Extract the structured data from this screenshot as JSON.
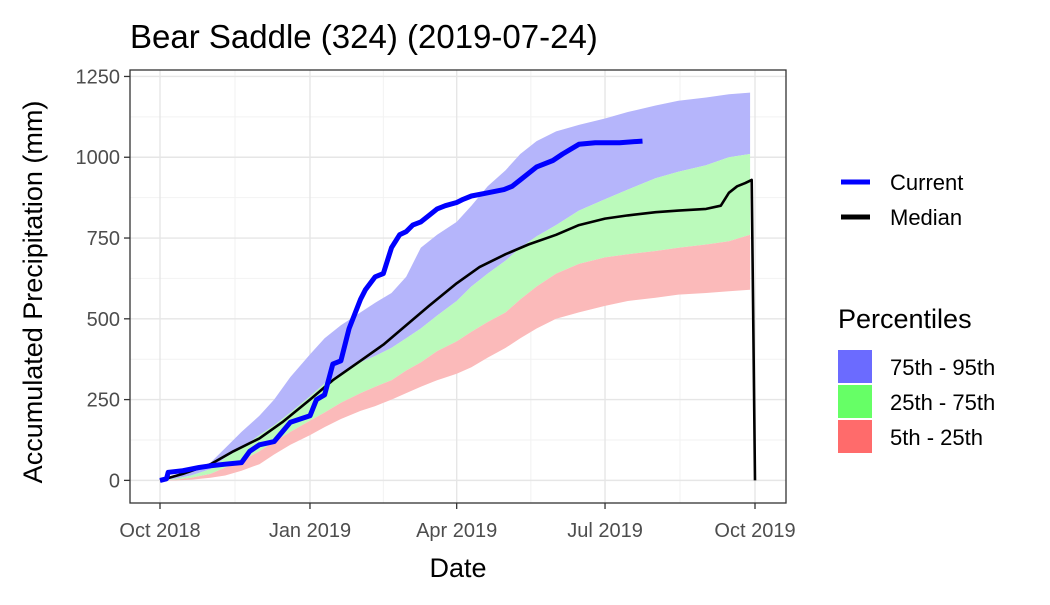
{
  "chart_data": {
    "type": "area",
    "title": "Bear Saddle (324) (2019-07-24)",
    "xlabel": "Date",
    "ylabel": "Accumulated Precipitation (mm)",
    "x_domain": [
      "2018-10-01",
      "2019-10-01"
    ],
    "ylim": [
      -70,
      1270
    ],
    "x_ticks": [
      {
        "date": "2018-10-01",
        "label": "Oct 2018"
      },
      {
        "date": "2019-01-01",
        "label": "Jan 2019"
      },
      {
        "date": "2019-04-01",
        "label": "Apr 2019"
      },
      {
        "date": "2019-07-01",
        "label": "Jul 2019"
      },
      {
        "date": "2019-10-01",
        "label": "Oct 2019"
      }
    ],
    "y_ticks": [
      0,
      250,
      500,
      750,
      1000,
      1250
    ],
    "grid": true,
    "legend": {
      "lines_title": "",
      "lines": [
        {
          "name": "Current",
          "color": "#0000ff"
        },
        {
          "name": "Median",
          "color": "#000000"
        }
      ],
      "bands_title": "Percentiles",
      "bands": [
        {
          "name": "75th - 95th",
          "color": "#6b6bff"
        },
        {
          "name": "25th - 75th",
          "color": "#66ff66"
        },
        {
          "name": "5th - 25th",
          "color": "#ff6b6b"
        }
      ]
    },
    "bands": [
      {
        "name": "75th - 95th",
        "color": "#b5b5fb",
        "dates": [
          "2018-10-01",
          "2018-10-10",
          "2018-10-20",
          "2018-11-01",
          "2018-11-10",
          "2018-11-20",
          "2018-12-01",
          "2018-12-10",
          "2018-12-20",
          "2019-01-01",
          "2019-01-10",
          "2019-01-20",
          "2019-02-01",
          "2019-02-10",
          "2019-02-20",
          "2019-03-01",
          "2019-03-10",
          "2019-03-20",
          "2019-04-01",
          "2019-04-10",
          "2019-04-20",
          "2019-05-01",
          "2019-05-10",
          "2019-05-20",
          "2019-06-01",
          "2019-06-15",
          "2019-07-01",
          "2019-07-15",
          "2019-08-01",
          "2019-08-15",
          "2019-09-01",
          "2019-09-15",
          "2019-09-28"
        ],
        "lower": [
          0,
          5,
          15,
          35,
          70,
          100,
          140,
          170,
          210,
          260,
          300,
          330,
          365,
          385,
          410,
          440,
          470,
          510,
          555,
          600,
          640,
          680,
          720,
          755,
          790,
          835,
          870,
          900,
          935,
          955,
          975,
          1000,
          1010
        ],
        "upper": [
          0,
          10,
          25,
          55,
          100,
          150,
          200,
          250,
          320,
          390,
          440,
          480,
          520,
          550,
          580,
          630,
          720,
          760,
          800,
          850,
          910,
          960,
          1010,
          1050,
          1080,
          1100,
          1120,
          1140,
          1160,
          1175,
          1185,
          1195,
          1200
        ]
      },
      {
        "name": "25th - 75th",
        "color": "#bbfabb",
        "dates": [
          "2018-10-01",
          "2018-10-10",
          "2018-10-20",
          "2018-11-01",
          "2018-11-10",
          "2018-11-20",
          "2018-12-01",
          "2018-12-10",
          "2018-12-20",
          "2019-01-01",
          "2019-01-10",
          "2019-01-20",
          "2019-02-01",
          "2019-02-10",
          "2019-02-20",
          "2019-03-01",
          "2019-03-10",
          "2019-03-20",
          "2019-04-01",
          "2019-04-10",
          "2019-04-20",
          "2019-05-01",
          "2019-05-10",
          "2019-05-20",
          "2019-06-01",
          "2019-06-15",
          "2019-07-01",
          "2019-07-15",
          "2019-08-01",
          "2019-08-15",
          "2019-09-01",
          "2019-09-15",
          "2019-09-28"
        ],
        "lower": [
          0,
          2,
          8,
          20,
          40,
          60,
          90,
          120,
          150,
          185,
          210,
          240,
          270,
          290,
          310,
          340,
          365,
          400,
          430,
          460,
          490,
          520,
          560,
          600,
          640,
          670,
          690,
          700,
          710,
          720,
          730,
          740,
          760
        ],
        "upper": [
          0,
          5,
          15,
          35,
          70,
          100,
          140,
          170,
          210,
          260,
          300,
          330,
          365,
          385,
          410,
          440,
          470,
          510,
          555,
          600,
          640,
          680,
          720,
          755,
          790,
          835,
          870,
          900,
          935,
          955,
          975,
          1000,
          1010
        ]
      },
      {
        "name": "5th - 25th",
        "color": "#fbbaba",
        "dates": [
          "2018-10-01",
          "2018-10-10",
          "2018-10-20",
          "2018-11-01",
          "2018-11-10",
          "2018-11-20",
          "2018-12-01",
          "2018-12-10",
          "2018-12-20",
          "2019-01-01",
          "2019-01-10",
          "2019-01-20",
          "2019-02-01",
          "2019-02-10",
          "2019-02-20",
          "2019-03-01",
          "2019-03-10",
          "2019-03-20",
          "2019-04-01",
          "2019-04-10",
          "2019-04-20",
          "2019-05-01",
          "2019-05-10",
          "2019-05-20",
          "2019-06-01",
          "2019-06-15",
          "2019-07-01",
          "2019-07-15",
          "2019-08-01",
          "2019-08-15",
          "2019-09-01",
          "2019-09-15",
          "2019-09-28"
        ],
        "lower": [
          0,
          0,
          2,
          8,
          15,
          30,
          50,
          80,
          110,
          140,
          165,
          190,
          215,
          230,
          250,
          270,
          290,
          310,
          330,
          350,
          380,
          410,
          440,
          470,
          500,
          520,
          540,
          555,
          565,
          575,
          580,
          585,
          590
        ],
        "upper": [
          0,
          2,
          8,
          20,
          40,
          60,
          90,
          120,
          150,
          185,
          210,
          240,
          270,
          290,
          310,
          340,
          365,
          400,
          430,
          460,
          490,
          520,
          560,
          600,
          640,
          670,
          690,
          700,
          710,
          720,
          730,
          740,
          760
        ]
      }
    ],
    "series": [
      {
        "name": "Current",
        "color": "#0000ff",
        "x": [
          "2018-10-01",
          "2018-10-05",
          "2018-10-06",
          "2018-10-15",
          "2018-10-20",
          "2018-10-25",
          "2018-11-01",
          "2018-11-10",
          "2018-11-20",
          "2018-11-25",
          "2018-12-01",
          "2018-12-10",
          "2018-12-15",
          "2018-12-20",
          "2019-01-01",
          "2019-01-05",
          "2019-01-10",
          "2019-01-15",
          "2019-01-20",
          "2019-01-25",
          "2019-02-01",
          "2019-02-04",
          "2019-02-10",
          "2019-02-15",
          "2019-02-20",
          "2019-02-25",
          "2019-03-01",
          "2019-03-05",
          "2019-03-10",
          "2019-03-15",
          "2019-03-20",
          "2019-03-25",
          "2019-04-01",
          "2019-04-05",
          "2019-04-10",
          "2019-04-20",
          "2019-04-30",
          "2019-05-05",
          "2019-05-10",
          "2019-05-15",
          "2019-05-20",
          "2019-05-30",
          "2019-06-05",
          "2019-06-15",
          "2019-06-25",
          "2019-07-01",
          "2019-07-10",
          "2019-07-24"
        ],
        "y": [
          0,
          5,
          25,
          30,
          35,
          40,
          45,
          50,
          55,
          90,
          110,
          120,
          150,
          180,
          200,
          250,
          265,
          360,
          370,
          470,
          560,
          590,
          630,
          640,
          720,
          760,
          770,
          790,
          800,
          820,
          840,
          850,
          860,
          870,
          880,
          890,
          900,
          910,
          930,
          950,
          970,
          990,
          1010,
          1040,
          1045,
          1045,
          1045,
          1050
        ]
      },
      {
        "name": "Median",
        "color": "#000000",
        "x": [
          "2018-10-01",
          "2018-10-15",
          "2018-11-01",
          "2018-11-15",
          "2018-12-01",
          "2018-12-15",
          "2019-01-01",
          "2019-01-15",
          "2019-02-01",
          "2019-02-15",
          "2019-03-01",
          "2019-03-15",
          "2019-04-01",
          "2019-04-15",
          "2019-05-01",
          "2019-05-15",
          "2019-06-01",
          "2019-06-15",
          "2019-07-01",
          "2019-07-15",
          "2019-08-01",
          "2019-08-15",
          "2019-09-01",
          "2019-09-10",
          "2019-09-15",
          "2019-09-20",
          "2019-09-25",
          "2019-09-29",
          "2019-10-01"
        ],
        "y": [
          0,
          20,
          50,
          90,
          130,
          180,
          250,
          310,
          370,
          420,
          480,
          540,
          610,
          660,
          700,
          730,
          760,
          790,
          810,
          820,
          830,
          835,
          840,
          850,
          890,
          910,
          920,
          930,
          0
        ]
      }
    ]
  }
}
